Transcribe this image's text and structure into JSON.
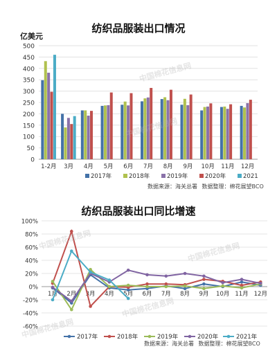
{
  "charts": {
    "bar": {
      "title": "纺织品服装出口情况",
      "unit": "亿美元",
      "source_label": "数据来源：海关总署",
      "compiler_label": "数据整理：棉花展望BCO"
    },
    "line": {
      "title": "纺织品服装出口同比增速",
      "source_label": "数据来源：海关总署",
      "compiler_label": "数据整理：棉花展望BCO"
    }
  },
  "colors": {
    "2017年": "#4472a8",
    "2018年": "#b0c14e",
    "2019年": "#8a72a9",
    "2020年": "#c0504d",
    "2021": "#4bacc6"
  },
  "line_colors": {
    "2017年": "#4472a8",
    "2018年": "#c0504d",
    "2019年": "#9bbb59",
    "2020年": "#8064a2",
    "2021年": "#4bacc6"
  },
  "watermark": "中国棉花信息网",
  "chart_data": [
    {
      "type": "bar",
      "title": "纺织品服装出口情况",
      "ylabel": "亿美元",
      "ylim": [
        0,
        500
      ],
      "yticks": [
        0,
        50,
        100,
        150,
        200,
        250,
        300,
        350,
        400,
        450,
        500
      ],
      "categories": [
        "1-2月",
        "3月",
        "4月",
        "5月",
        "6月",
        "7月",
        "8月",
        "9月",
        "10月",
        "11月",
        "12月"
      ],
      "grid": true,
      "legend": "bottom",
      "series": [
        {
          "name": "2017年",
          "values": [
            348,
            200,
            215,
            235,
            240,
            255,
            265,
            240,
            215,
            230,
            235
          ]
        },
        {
          "name": "2018年",
          "values": [
            432,
            140,
            215,
            237,
            254,
            268,
            273,
            266,
            230,
            232,
            228
          ]
        },
        {
          "name": "2019年",
          "values": [
            381,
            182,
            192,
            238,
            237,
            272,
            260,
            238,
            232,
            222,
            247
          ]
        },
        {
          "name": "2020年",
          "values": [
            297,
            155,
            213,
            294,
            291,
            314,
            306,
            285,
            246,
            242,
            262
          ]
        },
        {
          "name": "2021",
          "values": [
            460,
            190,
            null,
            null,
            null,
            null,
            null,
            null,
            null,
            null,
            null
          ]
        }
      ]
    },
    {
      "type": "line",
      "title": "纺织品服装出口同比增速",
      "ylim": [
        -60,
        100
      ],
      "yticks": [
        -60,
        -40,
        -20,
        0,
        20,
        40,
        60,
        80,
        100
      ],
      "categories": [
        "1月",
        "2月",
        "3月",
        "4月",
        "5月",
        "6月",
        "7月",
        "8月",
        "9月",
        "10月",
        "11月",
        "12月"
      ],
      "grid": true,
      "legend": "bottom",
      "series": [
        {
          "name": "2017年",
          "values": [
            -2,
            -25,
            18,
            -2,
            -5,
            -3,
            1,
            -3,
            4,
            0,
            7,
            2
          ]
        },
        {
          "name": "2018年",
          "values": [
            5,
            84,
            -30,
            0,
            -1,
            4,
            4,
            3,
            11,
            8,
            2,
            7
          ]
        },
        {
          "name": "2019年",
          "values": [
            8,
            -35,
            26,
            0,
            2,
            0,
            0,
            1,
            -3,
            1,
            -2,
            4
          ]
        },
        {
          "name": "2020年",
          "values": [
            -1,
            -22,
            20,
            7,
            25,
            18,
            16,
            20,
            16,
            6,
            11,
            5
          ]
        },
        {
          "name": "2021年",
          "values": [
            -20,
            54,
            22,
            10,
            -18,
            null,
            null,
            null,
            null,
            null,
            null,
            null
          ]
        }
      ]
    }
  ]
}
